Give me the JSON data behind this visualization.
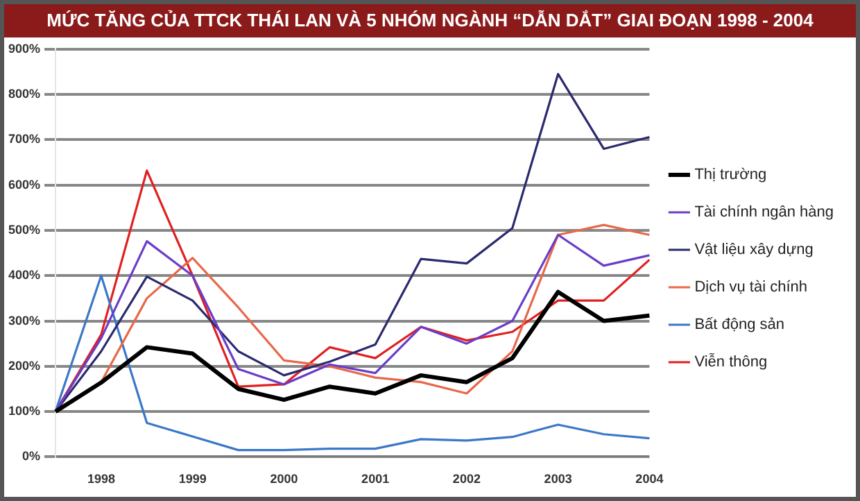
{
  "chart_data": {
    "type": "line",
    "title": "MỨC TĂNG CỦA TTCK THÁI LAN VÀ 5 NHÓM NGÀNH “DẪN DẮT” GIAI ĐOẠN 1998 - 2004",
    "categories": [
      null,
      "1998",
      null,
      "1999",
      null,
      "2000",
      null,
      "2001",
      null,
      "2002",
      null,
      "2003",
      null,
      "2004"
    ],
    "series": [
      {
        "name": "Thị trường",
        "color": "#000000",
        "values": [
          100,
          164,
          242,
          228,
          150,
          126,
          155,
          140,
          180,
          165,
          218,
          364,
          300,
          312
        ]
      },
      {
        "name": "Tài chính ngân hàng",
        "color": "#6a3dc8",
        "values": [
          100,
          262,
          476,
          400,
          194,
          160,
          204,
          185,
          287,
          250,
          300,
          490,
          422,
          445
        ]
      },
      {
        "name": "Vật liệu xây dựng",
        "color": "#2a2a6e",
        "values": [
          100,
          233,
          398,
          345,
          233,
          180,
          210,
          248,
          437,
          427,
          505,
          845,
          680,
          706
        ]
      },
      {
        "name": "Dịch vụ tài chính",
        "color": "#e8684a",
        "values": [
          100,
          165,
          350,
          439,
          330,
          213,
          200,
          175,
          165,
          140,
          233,
          490,
          512,
          490
        ]
      },
      {
        "name": "Bất động sản",
        "color": "#3a78c8",
        "values": [
          100,
          400,
          75,
          45,
          15,
          15,
          18,
          18,
          39,
          36,
          44,
          71,
          50,
          41
        ]
      },
      {
        "name": "Viễn thông",
        "color": "#e02020",
        "values": [
          100,
          270,
          632,
          400,
          155,
          160,
          242,
          218,
          287,
          257,
          276,
          345,
          345,
          435
        ]
      }
    ],
    "ylim": [
      0,
      900
    ],
    "yticks": [
      {
        "value": 0,
        "label": "0%"
      },
      {
        "value": 100,
        "label": "100%"
      },
      {
        "value": 200,
        "label": "200%"
      },
      {
        "value": 300,
        "label": "300%"
      },
      {
        "value": 400,
        "label": "400%"
      },
      {
        "value": 500,
        "label": "500%"
      },
      {
        "value": 600,
        "label": "600%"
      },
      {
        "value": 700,
        "label": "700%"
      },
      {
        "value": 800,
        "label": "800%"
      },
      {
        "value": 900,
        "label": "900%"
      }
    ],
    "grid": "y",
    "legend": "right",
    "marker": "none",
    "line_style": "solid"
  }
}
